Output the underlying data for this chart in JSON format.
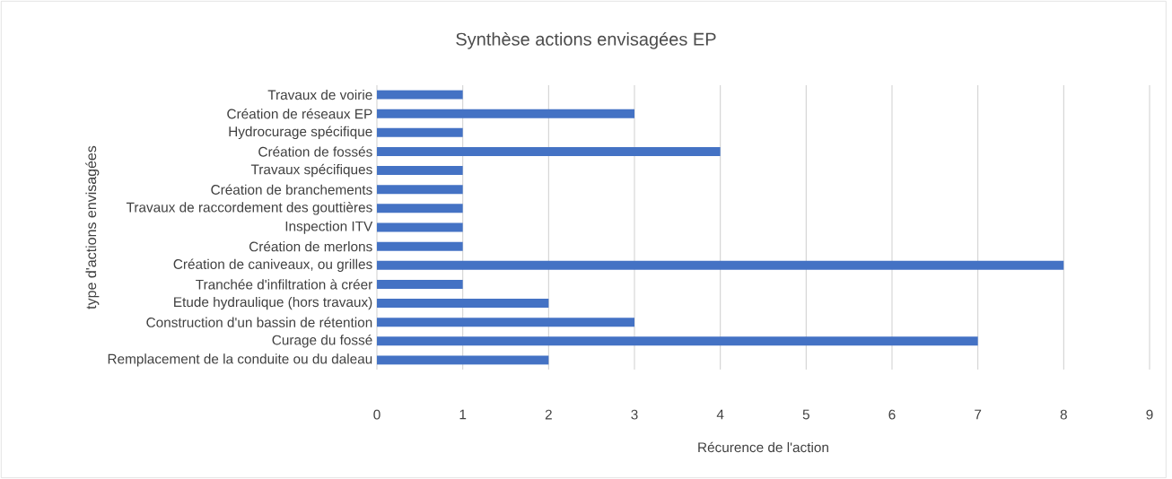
{
  "chart_data": {
    "type": "bar",
    "orientation": "horizontal",
    "title": "Synthèse actions envisagées EP",
    "xlabel": "Récurence de l'action",
    "ylabel": "type d'actions envisagées",
    "categories": [
      "Travaux de voirie",
      "Création de réseaux EP",
      "Hydrocurage spécifique",
      "Création de fossés",
      "Travaux spécifiques",
      "Création de branchements",
      "Travaux de raccordement des gouttières",
      "Inspection ITV",
      "Création de merlons",
      "Création de caniveaux, ou grilles",
      "Tranchée d'infiltration à créer",
      "Etude hydraulique (hors travaux)",
      "Construction d'un bassin de rétention",
      "Curage du fossé",
      "Remplacement de la conduite ou du daleau"
    ],
    "values": [
      1,
      3,
      1,
      4,
      1,
      1,
      1,
      1,
      1,
      8,
      1,
      2,
      3,
      7,
      2
    ],
    "color": "#4472c4",
    "xlim": [
      0,
      9
    ],
    "xticks": [
      0,
      1,
      2,
      3,
      4,
      5,
      6,
      7,
      8,
      9
    ],
    "grid": "x"
  }
}
